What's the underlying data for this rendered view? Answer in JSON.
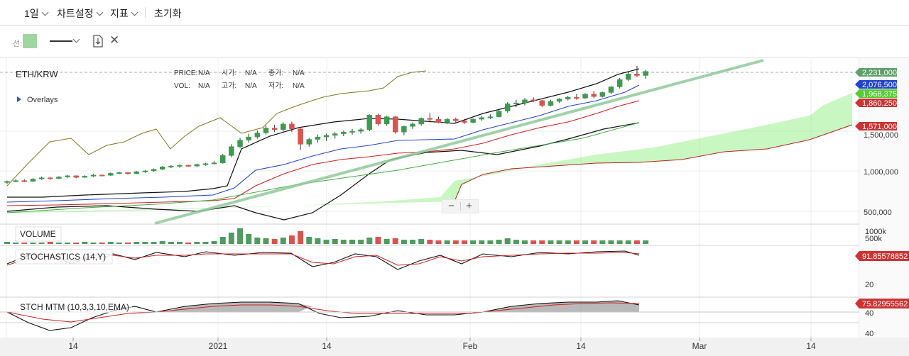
{
  "toolbar": {
    "period_label": "1일",
    "chart_settings_label": "차트설정",
    "indicator_label": "지표",
    "reset_label": "초기화"
  },
  "drawing_toolbar": {
    "line_label": "선:",
    "line_color": "#9fd6a0"
  },
  "legend": {
    "symbol": "ETH/KRW",
    "price_label": "PRICE:",
    "price_value": "N/A",
    "open_label": "시가:",
    "open_value": "N/A",
    "close_label": "종가:",
    "close_value": "N/A",
    "vol_label": "VOL:",
    "vol_value": "N/A",
    "high_label": "고가:",
    "high_value": "N/A",
    "low_label": "저가:",
    "low_value": "N/A",
    "overlays_label": "Overlays"
  },
  "zoom": {
    "minus": "−",
    "plus": "+"
  },
  "chart_data": {
    "type": "candlestick",
    "symbol": "ETH/KRW",
    "x_ticks": [
      "14",
      "2021",
      "14",
      "Feb",
      "14",
      "Mar",
      "14"
    ],
    "price_axis": {
      "ticks": [
        "1,500,000",
        "1,000,000",
        "500,000"
      ]
    },
    "price_badges": [
      {
        "label": "2,231,000",
        "value": 2231000,
        "color": "#5f9f6a"
      },
      {
        "label": "2,076,500",
        "value": 2076500,
        "color": "#2244cc"
      },
      {
        "label": "1,968,375",
        "value": 1968375,
        "color": "#55cc33"
      },
      {
        "label": "1,860,250",
        "value": 1860250,
        "color": "#cc3333"
      },
      {
        "label": "1,571,000",
        "value": 1571000,
        "color": "#cc3333"
      }
    ],
    "volume": {
      "title": "VOLUME",
      "axis_ticks": [
        "1000k",
        "500k"
      ]
    },
    "stochastics": {
      "title": "STOCHASTICS (14,Y)",
      "badge": "91.85578852",
      "badge_color": "#cc3333",
      "axis_ticks": [
        "20"
      ]
    },
    "stch_mtm": {
      "title": "STCH MTM (10,3,3,10,EMA)",
      "badge": "75.82955562",
      "badge_color": "#cc3333",
      "axis_ticks": [
        "40",
        "40"
      ]
    },
    "candles": [
      [
        860000,
        880000,
        840000,
        870000
      ],
      [
        870000,
        900000,
        860000,
        880000
      ],
      [
        880000,
        895000,
        860000,
        870000
      ],
      [
        870000,
        910000,
        865000,
        900000
      ],
      [
        900000,
        930000,
        890000,
        915000
      ],
      [
        915000,
        925000,
        890000,
        905000
      ],
      [
        905000,
        935000,
        900000,
        925000
      ],
      [
        925000,
        950000,
        915000,
        940000
      ],
      [
        940000,
        945000,
        910000,
        920000
      ],
      [
        920000,
        945000,
        915000,
        935000
      ],
      [
        935000,
        960000,
        925000,
        950000
      ],
      [
        950000,
        955000,
        935000,
        945000
      ],
      [
        945000,
        980000,
        940000,
        970000
      ],
      [
        970000,
        990000,
        960000,
        980000
      ],
      [
        980000,
        985000,
        955000,
        965000
      ],
      [
        965000,
        1000000,
        960000,
        990000
      ],
      [
        990000,
        1010000,
        975000,
        1000000
      ],
      [
        1000000,
        1030000,
        990000,
        1020000
      ],
      [
        1020000,
        1060000,
        1010000,
        1050000
      ],
      [
        1050000,
        1070000,
        1035000,
        1060000
      ],
      [
        1060000,
        1080000,
        1040000,
        1070000
      ],
      [
        1070000,
        1075000,
        1050000,
        1060000
      ],
      [
        1060000,
        1090000,
        1050000,
        1080000
      ],
      [
        1080000,
        1100000,
        1065000,
        1090000
      ],
      [
        1090000,
        1120000,
        1080000,
        1100000
      ],
      [
        1100000,
        1210000,
        1090000,
        1190000
      ],
      [
        1190000,
        1330000,
        1170000,
        1300000
      ],
      [
        1300000,
        1410000,
        1280000,
        1380000
      ],
      [
        1380000,
        1460000,
        1350000,
        1420000
      ],
      [
        1420000,
        1500000,
        1400000,
        1470000
      ],
      [
        1470000,
        1560000,
        1450000,
        1530000
      ],
      [
        1530000,
        1570000,
        1480000,
        1510000
      ],
      [
        1510000,
        1600000,
        1490000,
        1580000
      ],
      [
        1580000,
        1610000,
        1480000,
        1520000
      ],
      [
        1520000,
        1530000,
        1260000,
        1330000
      ],
      [
        1330000,
        1410000,
        1300000,
        1390000
      ],
      [
        1390000,
        1450000,
        1350000,
        1420000
      ],
      [
        1420000,
        1460000,
        1370000,
        1440000
      ],
      [
        1440000,
        1480000,
        1400000,
        1460000
      ],
      [
        1460000,
        1500000,
        1430000,
        1480000
      ],
      [
        1480000,
        1520000,
        1450000,
        1490000
      ],
      [
        1490000,
        1530000,
        1460000,
        1510000
      ],
      [
        1510000,
        1700000,
        1490000,
        1690000
      ],
      [
        1690000,
        1710000,
        1560000,
        1580000
      ],
      [
        1580000,
        1680000,
        1560000,
        1670000
      ],
      [
        1670000,
        1680000,
        1460000,
        1480000
      ],
      [
        1480000,
        1560000,
        1440000,
        1550000
      ],
      [
        1550000,
        1600000,
        1520000,
        1580000
      ],
      [
        1580000,
        1660000,
        1560000,
        1650000
      ],
      [
        1650000,
        1720000,
        1600000,
        1640000
      ],
      [
        1640000,
        1670000,
        1590000,
        1600000
      ],
      [
        1600000,
        1650000,
        1580000,
        1640000
      ],
      [
        1640000,
        1660000,
        1600000,
        1620000
      ],
      [
        1620000,
        1640000,
        1580000,
        1600000
      ],
      [
        1600000,
        1650000,
        1590000,
        1640000
      ],
      [
        1640000,
        1680000,
        1620000,
        1660000
      ],
      [
        1660000,
        1700000,
        1640000,
        1670000
      ],
      [
        1670000,
        1760000,
        1660000,
        1740000
      ],
      [
        1740000,
        1850000,
        1720000,
        1830000
      ],
      [
        1830000,
        1880000,
        1790000,
        1840000
      ],
      [
        1840000,
        1900000,
        1810000,
        1880000
      ],
      [
        1880000,
        1910000,
        1850000,
        1870000
      ],
      [
        1870000,
        1880000,
        1790000,
        1810000
      ],
      [
        1810000,
        1880000,
        1800000,
        1860000
      ],
      [
        1860000,
        1900000,
        1840000,
        1890000
      ],
      [
        1890000,
        1930000,
        1870000,
        1910000
      ],
      [
        1910000,
        1950000,
        1880000,
        1900000
      ],
      [
        1900000,
        1960000,
        1890000,
        1950000
      ],
      [
        1950000,
        1990000,
        1900000,
        1920000
      ],
      [
        1920000,
        1980000,
        1910000,
        1970000
      ],
      [
        1970000,
        2050000,
        1950000,
        2040000
      ],
      [
        2040000,
        2150000,
        2020000,
        2130000
      ],
      [
        2130000,
        2220000,
        2110000,
        2200000
      ],
      [
        2200000,
        2300000,
        2160000,
        2180000
      ],
      [
        2180000,
        2250000,
        2140000,
        2231000
      ]
    ]
  }
}
